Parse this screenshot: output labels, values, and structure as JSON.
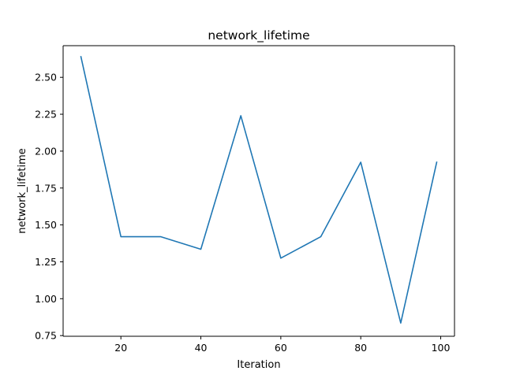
{
  "chart_data": {
    "type": "line",
    "title": "network_lifetime",
    "xlabel": "Iteration",
    "ylabel": "network_lifetime",
    "xlim": [
      5.55,
      103.45
    ],
    "ylim": [
      0.7455,
      2.7145
    ],
    "xticks": [
      20,
      40,
      60,
      80,
      100
    ],
    "yticks": [
      0.75,
      1.0,
      1.25,
      1.5,
      1.75,
      2.0,
      2.25,
      2.5
    ],
    "ytick_labels": [
      "0.75",
      "1.00",
      "1.25",
      "1.50",
      "1.75",
      "2.00",
      "2.25",
      "2.50"
    ],
    "grid": false,
    "series": [
      {
        "color": "#1f77b4",
        "x": [
          10,
          20,
          30,
          40,
          50,
          60,
          70,
          80,
          90,
          99
        ],
        "y": [
          2.64,
          1.42,
          1.42,
          1.335,
          2.24,
          1.275,
          1.42,
          1.925,
          0.835,
          1.925
        ]
      }
    ]
  }
}
